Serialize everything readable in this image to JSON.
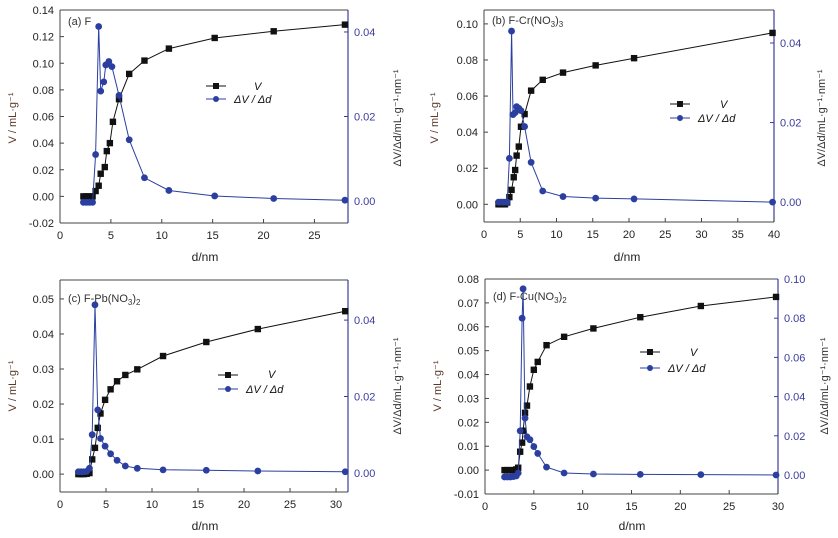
{
  "colors": {
    "v_series": "#111111",
    "dv_series": "#2b3fa0",
    "right_axis": "#3c3c9c",
    "left_axis": "#333333",
    "left_ylabel": "#5a3a2a"
  },
  "chart_data": [
    {
      "type": "line",
      "panel_label": "(a) F",
      "xlabel": "d/nm",
      "ylabel_left": "V / mL·g⁻¹",
      "ylabel_right": "ΔV/Δd/mL·g⁻¹·nm⁻¹",
      "xlim": [
        0,
        28.3
      ],
      "ylim_left": [
        -0.02,
        0.14
      ],
      "ylim_right": [
        -0.0052,
        0.0452
      ],
      "xticks": [
        0,
        5,
        10,
        15,
        20,
        25
      ],
      "yticks_left": [
        -0.02,
        0.0,
        0.02,
        0.04,
        0.06,
        0.08,
        0.1,
        0.12,
        0.14
      ],
      "yticks_right": [
        0.0,
        0.02,
        0.04
      ],
      "legend": [
        "V",
        "ΔV / Δd"
      ],
      "legend_position": "center-right",
      "grid": false,
      "series": [
        {
          "name": "V",
          "axis": "left",
          "marker": "square",
          "x": [
            2.3,
            2.6,
            2.9,
            3.2,
            3.5,
            3.8,
            4.0,
            4.4,
            4.6,
            4.9,
            5.2,
            5.8,
            6.8,
            8.3,
            10.7,
            15.2,
            21.0,
            28.0
          ],
          "y": [
            0.0,
            0.0,
            0.0,
            0.0,
            0.004,
            0.008,
            0.017,
            0.022,
            0.034,
            0.04,
            0.056,
            0.073,
            0.092,
            0.102,
            0.111,
            0.119,
            0.124,
            0.129
          ]
        },
        {
          "name": "ΔV / Δd",
          "axis": "right",
          "marker": "circle",
          "x": [
            2.3,
            2.6,
            2.9,
            3.2,
            3.5,
            3.8,
            4.0,
            4.3,
            4.5,
            4.8,
            5.1,
            5.8,
            6.8,
            8.3,
            10.7,
            15.2,
            21.0,
            28.0
          ],
          "y": [
            -0.0003,
            -0.0003,
            -0.0003,
            -0.0003,
            0.011,
            0.0413,
            0.026,
            0.0282,
            0.0322,
            0.033,
            0.0318,
            0.025,
            0.0145,
            0.0055,
            0.0025,
            0.0012,
            0.0006,
            0.0002
          ]
        }
      ]
    },
    {
      "type": "line",
      "panel_label": "(b) F-Cr(NO3)3",
      "xlabel": "d/nm",
      "ylabel_left": "V / mL·g⁻¹",
      "ylabel_right": "ΔV/Δd/mL·g⁻¹·nm⁻¹",
      "xlim": [
        0,
        40
      ],
      "ylim_left": [
        -0.0098,
        0.1077
      ],
      "ylim_right": [
        -0.005,
        0.0483
      ],
      "xticks": [
        0,
        5,
        10,
        15,
        20,
        25,
        30,
        35,
        40
      ],
      "yticks_left": [
        0.0,
        0.02,
        0.04,
        0.06,
        0.08,
        0.1
      ],
      "yticks_right": [
        0.0,
        0.02,
        0.04
      ],
      "legend": [
        "V",
        "ΔV / Δd"
      ],
      "legend_position": "center-right",
      "grid": false,
      "series": [
        {
          "name": "V",
          "axis": "left",
          "marker": "square",
          "x": [
            2.0,
            2.3,
            2.6,
            2.9,
            3.2,
            3.5,
            3.8,
            4.1,
            4.3,
            4.5,
            4.8,
            5.1,
            5.6,
            6.5,
            8.1,
            10.9,
            15.4,
            20.7,
            39.8
          ],
          "y": [
            0.0,
            0.0,
            0.0,
            0.0,
            0.001,
            0.004,
            0.008,
            0.015,
            0.019,
            0.027,
            0.032,
            0.043,
            0.05,
            0.063,
            0.069,
            0.073,
            0.077,
            0.081,
            0.095
          ]
        },
        {
          "name": "ΔV / Δd",
          "axis": "right",
          "marker": "circle",
          "x": [
            2.0,
            2.3,
            2.6,
            2.9,
            3.2,
            3.5,
            3.8,
            4.0,
            4.3,
            4.5,
            4.8,
            5.1,
            5.6,
            6.5,
            8.1,
            10.9,
            15.4,
            20.7,
            39.8
          ],
          "y": [
            0.0,
            0.0,
            0.0,
            0.0,
            0.0,
            0.011,
            0.043,
            0.022,
            0.0225,
            0.024,
            0.0236,
            0.023,
            0.019,
            0.01,
            0.0028,
            0.0014,
            0.001,
            0.0008,
            0.0
          ]
        }
      ]
    },
    {
      "type": "line",
      "panel_label": "(c) F-Pb(NO3)2",
      "xlabel": "d/nm",
      "ylabel_left": "V / mL·g⁻¹",
      "ylabel_right": "ΔV/Δd/mL·g⁻¹·nm⁻¹",
      "xlim": [
        0,
        31.3
      ],
      "ylim_left": [
        -0.0051,
        0.0554
      ],
      "ylim_right": [
        -0.005,
        0.0505
      ],
      "xticks": [
        0,
        5,
        10,
        15,
        20,
        25,
        30
      ],
      "yticks_left": [
        0.0,
        0.01,
        0.02,
        0.03,
        0.04,
        0.05
      ],
      "yticks_right": [
        0.0,
        0.02,
        0.04
      ],
      "legend": [
        "V",
        "ΔV / Δd"
      ],
      "legend_position": "center-right",
      "grid": false,
      "series": [
        {
          "name": "V",
          "axis": "left",
          "marker": "square",
          "x": [
            2.0,
            2.3,
            2.6,
            2.9,
            3.2,
            3.5,
            3.8,
            4.1,
            4.4,
            4.9,
            5.5,
            6.2,
            7.1,
            8.4,
            11.2,
            15.9,
            21.5,
            31.0
          ],
          "y": [
            0.0,
            0.0,
            0.0,
            0.0001,
            0.0003,
            0.0042,
            0.0075,
            0.0132,
            0.0173,
            0.0212,
            0.0242,
            0.0265,
            0.0283,
            0.0299,
            0.0337,
            0.0377,
            0.0414,
            0.0465
          ]
        },
        {
          "name": "ΔV / Δd",
          "axis": "right",
          "marker": "circle",
          "x": [
            2.0,
            2.3,
            2.6,
            2.9,
            3.2,
            3.5,
            3.8,
            4.1,
            4.4,
            4.9,
            5.5,
            6.2,
            7.1,
            8.4,
            11.2,
            15.9,
            21.5,
            31.0
          ],
          "y": [
            0.0003,
            0.0003,
            0.0003,
            0.0004,
            0.0012,
            0.01,
            0.044,
            0.0165,
            0.009,
            0.007,
            0.005,
            0.0033,
            0.0018,
            0.0012,
            0.0008,
            0.0007,
            0.0005,
            0.0003
          ]
        }
      ]
    },
    {
      "type": "line",
      "panel_label": "(d) F-Cu(NO3)2",
      "xlabel": "d/nm",
      "ylabel_left": "V / mL·g⁻¹",
      "ylabel_right": "ΔV/Δd/mL·g⁻¹·nm⁻¹",
      "xlim": [
        0,
        30
      ],
      "ylim_left": [
        -0.01,
        0.08
      ],
      "ylim_right": [
        -0.0097,
        0.1
      ],
      "xticks": [
        0,
        5,
        10,
        15,
        20,
        25,
        30
      ],
      "yticks_left": [
        -0.01,
        0.0,
        0.01,
        0.02,
        0.03,
        0.04,
        0.05,
        0.06,
        0.07,
        0.08
      ],
      "yticks_right": [
        0.0,
        0.02,
        0.04,
        0.06,
        0.08,
        0.1
      ],
      "legend": [
        "V",
        "ΔV / Δd"
      ],
      "legend_position": "center-right",
      "grid": false,
      "series": [
        {
          "name": "V",
          "axis": "left",
          "marker": "square",
          "x": [
            2.0,
            2.3,
            2.6,
            2.9,
            3.2,
            3.4,
            3.6,
            3.8,
            3.9,
            4.1,
            4.3,
            4.6,
            5.0,
            5.4,
            6.3,
            8.1,
            11.1,
            15.9,
            22.1,
            29.8
          ],
          "y": [
            0.0,
            0.0,
            0.0,
            0.0,
            0.0003,
            0.001,
            0.0077,
            0.0115,
            0.0165,
            0.024,
            0.027,
            0.035,
            0.042,
            0.0453,
            0.0523,
            0.0558,
            0.0593,
            0.064,
            0.0687,
            0.0725
          ]
        },
        {
          "name": "ΔV / Δd",
          "axis": "right",
          "marker": "circle",
          "x": [
            2.0,
            2.3,
            2.6,
            2.9,
            3.2,
            3.4,
            3.6,
            3.8,
            3.9,
            4.1,
            4.3,
            4.6,
            5.0,
            5.4,
            6.3,
            8.1,
            11.1,
            15.9,
            22.1,
            29.8
          ],
          "y": [
            -0.001,
            -0.001,
            -0.001,
            -0.0008,
            -0.0005,
            0.001,
            0.0225,
            0.08,
            0.095,
            0.029,
            0.0195,
            0.018,
            0.0145,
            0.011,
            0.004,
            0.001,
            0.0005,
            0.0003,
            0.0002,
            0.0
          ]
        }
      ]
    }
  ]
}
